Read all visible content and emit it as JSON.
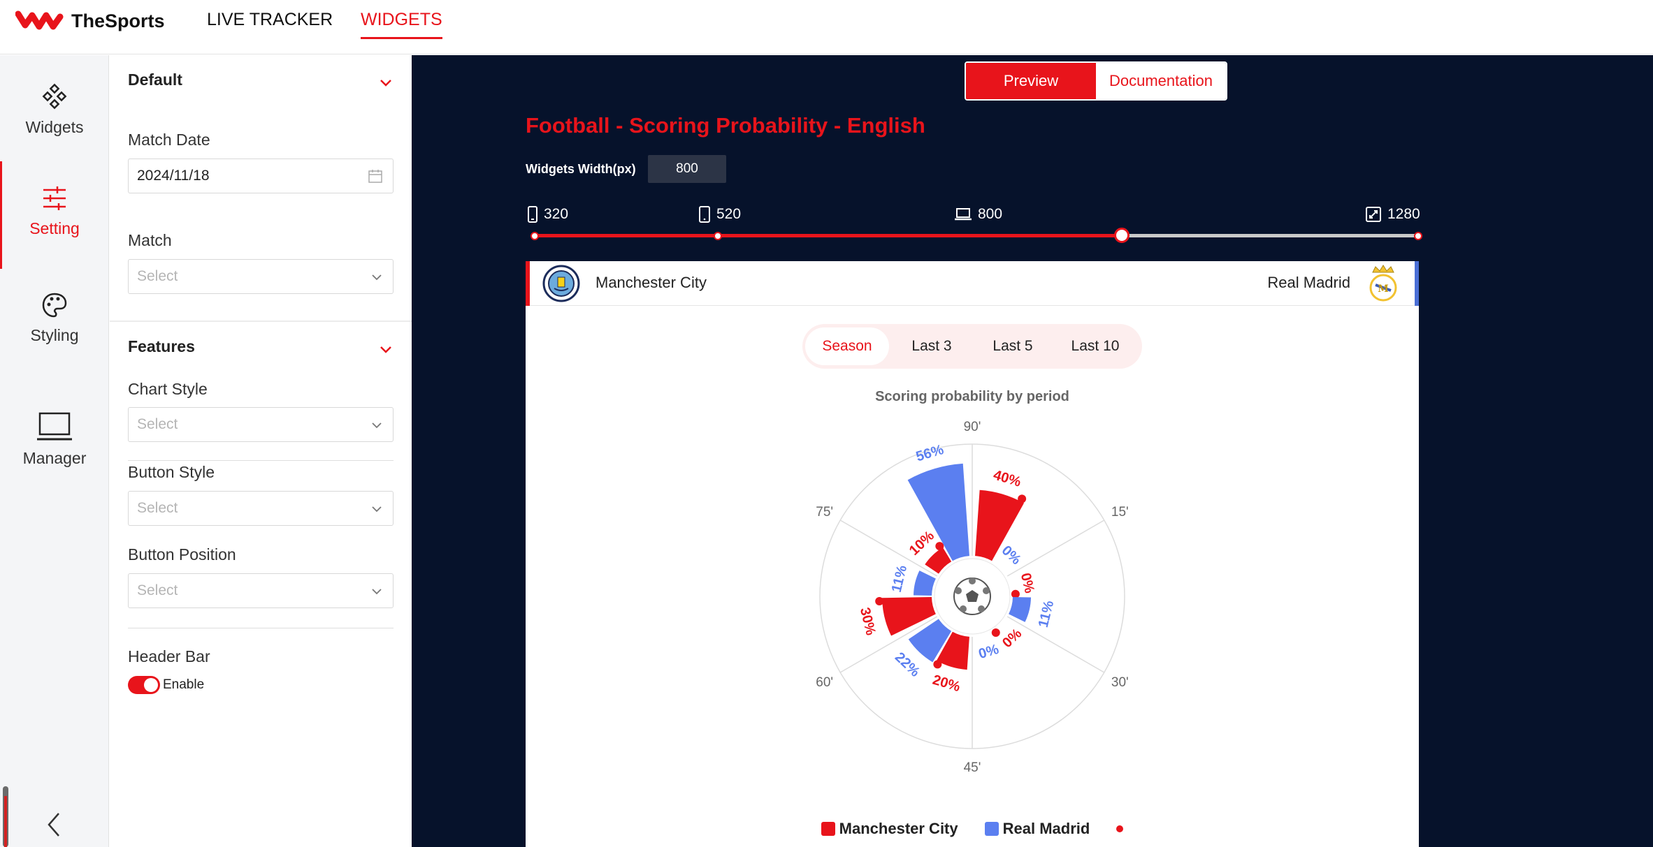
{
  "brand": {
    "name": "TheSports"
  },
  "nav": {
    "live_tracker": "LIVE TRACKER",
    "widgets": "WIDGETS"
  },
  "sidebar": {
    "items": [
      {
        "label": "Widgets",
        "icon": "widgets-icon"
      },
      {
        "label": "Setting",
        "icon": "sliders-icon",
        "active": true
      },
      {
        "label": "Styling",
        "icon": "palette-icon"
      },
      {
        "label": "Manager",
        "icon": "laptop-icon"
      }
    ]
  },
  "settings": {
    "default_section": "Default",
    "match_date_label": "Match Date",
    "match_date_value": "2024/11/18",
    "match_label": "Match",
    "match_placeholder": "Select",
    "features_section": "Features",
    "chart_style_label": "Chart Style",
    "chart_style_placeholder": "Select",
    "button_style_label": "Button Style",
    "button_style_placeholder": "Select",
    "button_position_label": "Button Position",
    "button_position_placeholder": "Select",
    "header_bar_label": "Header Bar",
    "header_bar_toggle": "Enable",
    "header_bar_enabled": true
  },
  "preview": {
    "preview_button": "Preview",
    "docs_button": "Documentation",
    "title": "Football - Scoring Probability - English",
    "width_label": "Widgets Width(px)",
    "width_value": "800",
    "breakpoints": [
      "320",
      "520",
      "800",
      "1280"
    ],
    "slider_value": 800,
    "slider_min": 320,
    "slider_max": 1280
  },
  "widget": {
    "home_team": "Manchester City",
    "away_team": "Real Madrid",
    "tabs": [
      "Season",
      "Last 3",
      "Last 5",
      "Last 10"
    ],
    "active_tab": "Season"
  },
  "colors": {
    "accent": "#e8141b",
    "home": "#e8141b",
    "away": "#5b7ff0",
    "dark_bg": "#06122b"
  },
  "chart_data": {
    "type": "polar-bar",
    "title": "Scoring probability by period",
    "angle_labels": [
      "90'",
      "15'",
      "30'",
      "45'",
      "60'",
      "75'"
    ],
    "periods": [
      "0-15'",
      "15-30'",
      "30-45'",
      "45-60'",
      "60-75'",
      "75-90'"
    ],
    "series": [
      {
        "name": "Manchester City",
        "values": [
          40,
          0,
          0,
          20,
          30,
          10
        ],
        "labels": [
          "40%",
          "0%",
          "0%",
          "20%",
          "30%",
          "10%"
        ]
      },
      {
        "name": "Real Madrid",
        "values": [
          0,
          11,
          0,
          22,
          11,
          56
        ],
        "labels": [
          "0%",
          "11%",
          "0%",
          "22%",
          "11%",
          "56%"
        ]
      }
    ],
    "legend_position": "bottom"
  }
}
